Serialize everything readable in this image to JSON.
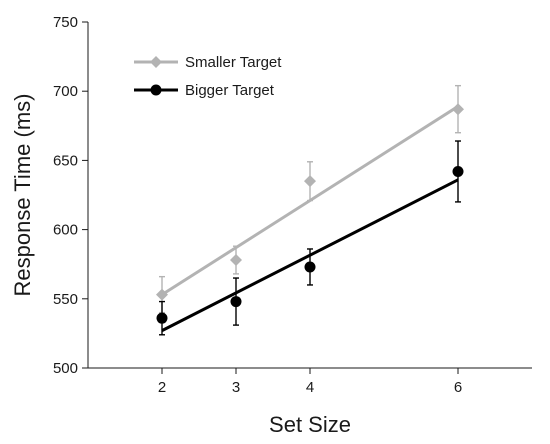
{
  "chart_data": {
    "type": "scatter",
    "xlabel": "Set Size",
    "ylabel": "Response Time (ms)",
    "xticks": [
      2,
      3,
      4,
      6
    ],
    "yticks": [
      500,
      550,
      600,
      650,
      700,
      750
    ],
    "xlim": [
      1,
      7
    ],
    "ylim": [
      500,
      750
    ],
    "grid": false,
    "legend_position": "top-left",
    "series": [
      {
        "name": "Smaller Target",
        "marker": "diamond",
        "color": "#b3b3b3",
        "x": [
          2,
          3,
          4,
          6
        ],
        "y": [
          553,
          578,
          635,
          687
        ],
        "error": [
          13,
          10,
          14,
          17
        ],
        "fit": {
          "x": [
            2,
            6
          ],
          "y": [
            553,
            689
          ]
        }
      },
      {
        "name": "Bigger Target",
        "marker": "circle",
        "color": "#000000",
        "x": [
          2,
          3,
          4,
          6
        ],
        "y": [
          536,
          548,
          573,
          642
        ],
        "error": [
          12,
          17,
          13,
          22
        ],
        "fit": {
          "x": [
            2,
            6
          ],
          "y": [
            527,
            636
          ]
        }
      }
    ]
  }
}
